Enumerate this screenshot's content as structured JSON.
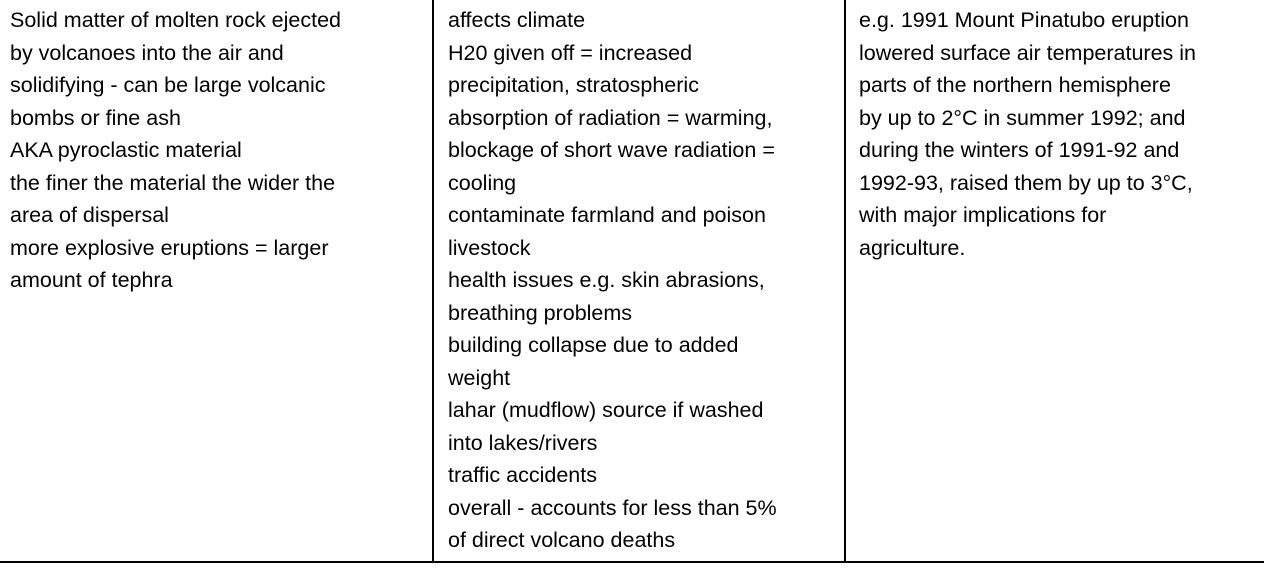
{
  "cells": [
    [
      "Solid matter of molten rock ejected",
      "by volcanoes into the air and",
      "solidifying - can be large volcanic",
      "bombs or fine ash",
      "AKA pyroclastic material",
      "the finer the material the wider the",
      "area of dispersal",
      "more explosive eruptions = larger",
      "amount of tephra"
    ],
    [
      "affects climate",
      "H20 given off = increased",
      "precipitation, stratospheric",
      "absorption of radiation  = warming,",
      "blockage of short wave radiation =",
      "cooling",
      "contaminate farmland and poison",
      "livestock",
      "health issues e.g. skin abrasions,",
      "breathing problems",
      "building collapse due to added",
      "weight",
      "lahar (mudflow) source if washed",
      "into lakes/rivers",
      "traffic accidents",
      "overall - accounts for less than 5%",
      "of direct volcano deaths"
    ],
    [
      "e.g. 1991 Mount Pinatubo eruption",
      "lowered surface air temperatures in",
      "parts of the northern hemisphere",
      "by up to 2°C in summer 1992; and",
      "during the winters of 1991-92 and",
      "1992-93, raised them by up to 3°C,",
      "with major implications for",
      "agriculture."
    ]
  ]
}
